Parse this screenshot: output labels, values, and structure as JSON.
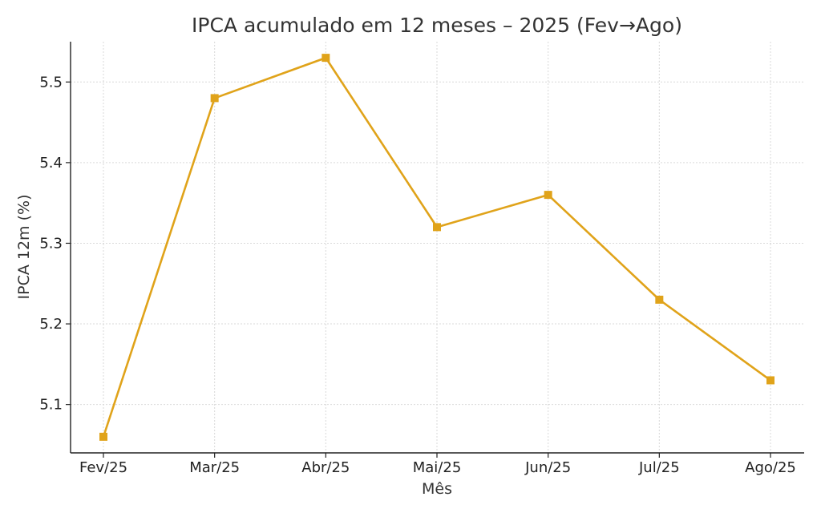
{
  "chart_data": {
    "type": "line",
    "title": "IPCA acumulado em 12 meses – 2025 (Fev→Ago)",
    "xlabel": "Mês",
    "ylabel": "IPCA 12m (%)",
    "categories": [
      "Fev/25",
      "Mar/25",
      "Abr/25",
      "Mai/25",
      "Jun/25",
      "Jul/25",
      "Ago/25"
    ],
    "series": [
      {
        "values": [
          5.06,
          5.48,
          5.53,
          5.32,
          5.36,
          5.23,
          5.13
        ]
      }
    ],
    "ylim": [
      5.04,
      5.55
    ],
    "yticks": [
      5.1,
      5.2,
      5.3,
      5.4,
      5.5
    ],
    "ytick_labels": [
      "5.1",
      "5.2",
      "5.3",
      "5.4",
      "5.5"
    ],
    "grid": true,
    "color": "#E0A31A",
    "marker": "square"
  }
}
